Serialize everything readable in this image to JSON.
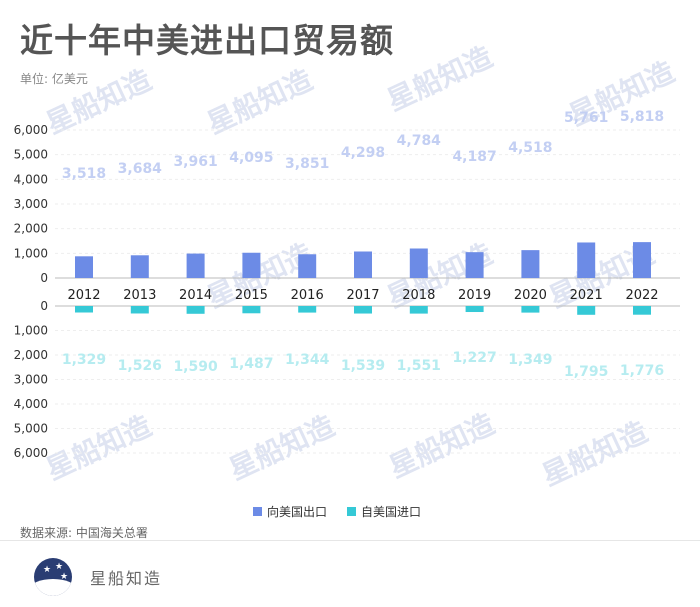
{
  "title": "近十年中美进出口贸易额",
  "unit_label": "单位: 亿美元",
  "source": "数据来源: 中国海关总署",
  "brand": "星船知造",
  "watermark": "星船知造",
  "colors": {
    "export": "#6c8be6",
    "import": "#35c9d6",
    "export_label": "#c3cff3",
    "import_label": "#b6ecf0"
  },
  "chart_data": {
    "type": "bar",
    "categories": [
      "2012",
      "2013",
      "2014",
      "2015",
      "2016",
      "2017",
      "2018",
      "2019",
      "2020",
      "2021",
      "2022"
    ],
    "series": [
      {
        "name": "向美国出口",
        "values": [
          3518,
          3684,
          3961,
          4095,
          3851,
          4298,
          4784,
          4187,
          4518,
          5761,
          5818
        ]
      },
      {
        "name": "自美国进口",
        "values": [
          1329,
          1526,
          1590,
          1487,
          1344,
          1539,
          1551,
          1227,
          1349,
          1795,
          1776
        ]
      }
    ],
    "upper_ticks": [
      "6,000",
      "5,000",
      "4,000",
      "3,000",
      "2,000",
      "1,000",
      "0"
    ],
    "lower_ticks": [
      "0",
      "1,000",
      "2,000",
      "3,000",
      "4,000",
      "5,000",
      "6,000"
    ],
    "ylim": [
      0,
      6000
    ],
    "grid": true,
    "legend_position": "bottom"
  }
}
